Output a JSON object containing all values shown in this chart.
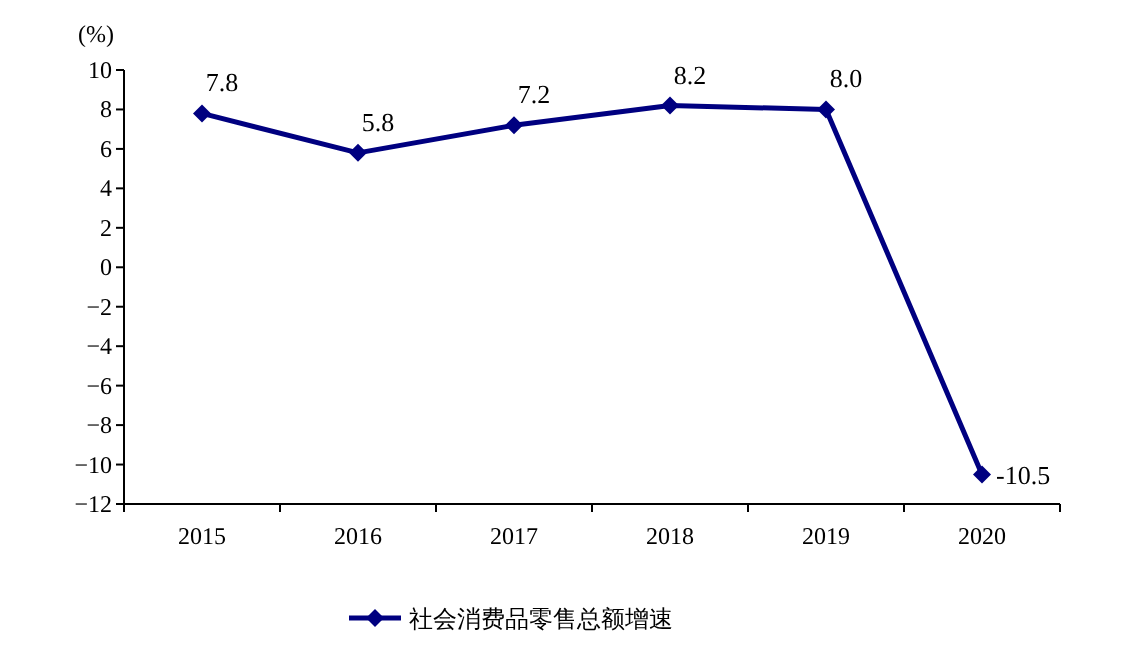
{
  "chart_data": {
    "type": "line",
    "ylabel": "(%)",
    "categories": [
      "2015",
      "2016",
      "2017",
      "2018",
      "2019",
      "2020"
    ],
    "series": [
      {
        "name": "社会消费品零售总额增速",
        "color": "#000080",
        "values": [
          7.8,
          5.8,
          7.2,
          8.2,
          8.0,
          -10.5
        ]
      }
    ],
    "ylim": [
      -12,
      10
    ],
    "yticks": [
      -12,
      -10,
      -8,
      -6,
      -4,
      -2,
      0,
      2,
      4,
      6,
      8,
      10
    ],
    "value_labels": [
      "7.8",
      "5.8",
      "7.2",
      "8.2",
      "8.0",
      "-10.5"
    ],
    "marker": "diamond",
    "legend": "bottom",
    "grid": false
  }
}
